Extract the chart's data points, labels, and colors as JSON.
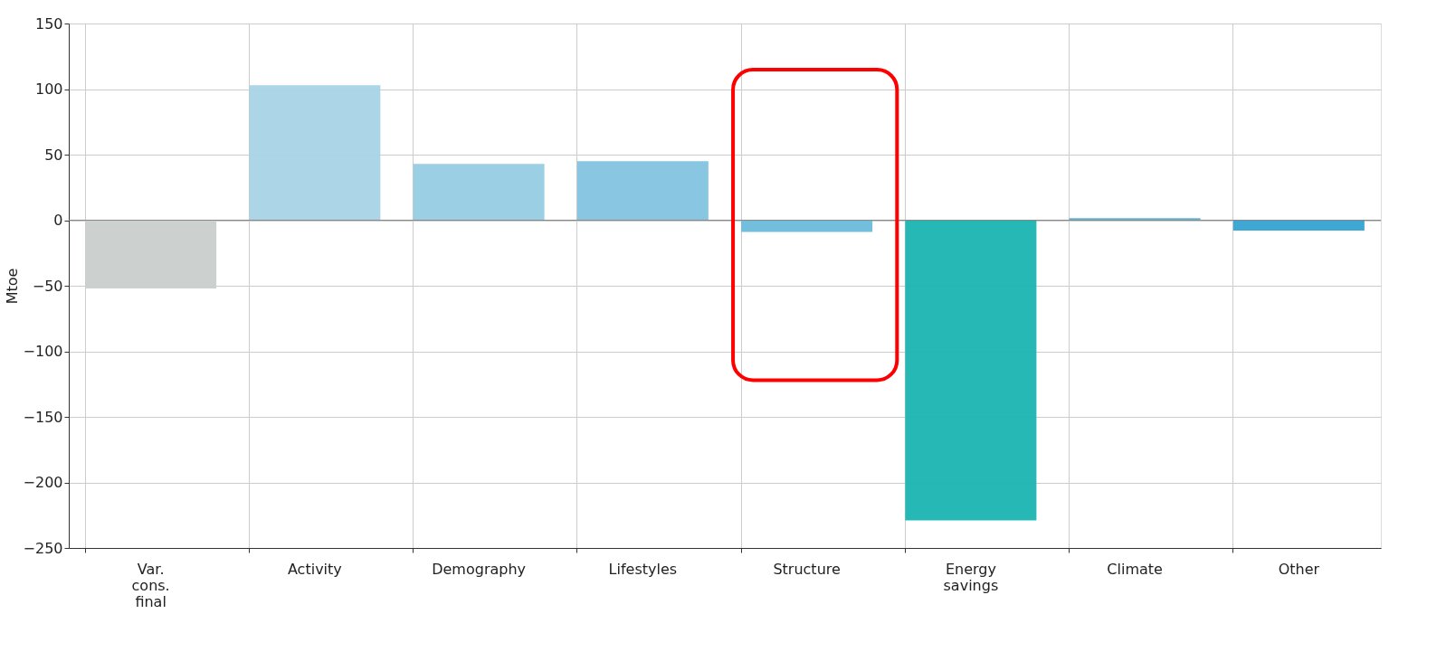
{
  "chart_data": {
    "type": "bar",
    "ylabel": "Mtoe",
    "categories": [
      "Var. cons. final",
      "Activity",
      "Demography",
      "Lifestyles",
      "Structure",
      "Energy savings",
      "Climate",
      "Other"
    ],
    "values": [
      -52,
      103,
      43,
      45,
      -9,
      -229,
      1.5,
      -8
    ],
    "colors": [
      "#c9cfcc",
      "#a8d4e6",
      "#96cce3",
      "#82c3df",
      "#6dbadb",
      "#1ab4b1",
      "#5ab1d8",
      "#35a2d2"
    ],
    "ylim": [
      -250,
      150
    ],
    "yticks": [
      -250,
      -200,
      -150,
      -100,
      -50,
      0,
      50,
      100,
      150
    ],
    "grid": true,
    "ref_lines": [
      {
        "axis": "y",
        "value": 0,
        "color": "#888888"
      }
    ]
  }
}
